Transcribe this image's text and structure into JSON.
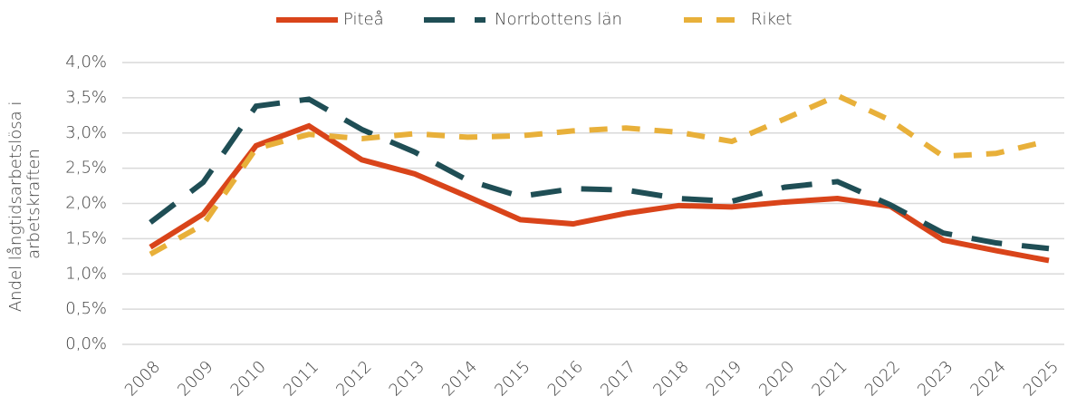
{
  "chart_data": {
    "type": "line",
    "ylabel": [
      "Andel långtidsarbetslösa i",
      "arbetskraften"
    ],
    "categories": [
      "2008",
      "2009",
      "2010",
      "2011",
      "2012",
      "2013",
      "2014",
      "2015",
      "2016",
      "2017",
      "2018",
      "2019",
      "2020",
      "2021",
      "2022",
      "2023",
      "2024",
      "2025"
    ],
    "series": [
      {
        "name": "Piteå",
        "color": "#d9441a",
        "line_style": "solid",
        "values": [
          1.38,
          1.85,
          2.82,
          3.1,
          2.62,
          2.42,
          2.1,
          1.77,
          1.71,
          1.86,
          1.97,
          1.95,
          2.02,
          2.07,
          1.96,
          1.48,
          1.33,
          1.19
        ]
      },
      {
        "name": "Norrbottens län",
        "color": "#1f4e55",
        "line_style": "long-dash",
        "values": [
          1.73,
          2.3,
          3.38,
          3.48,
          3.05,
          2.73,
          2.33,
          2.1,
          2.21,
          2.19,
          2.07,
          2.03,
          2.23,
          2.31,
          1.98,
          1.58,
          1.44,
          1.36
        ]
      },
      {
        "name": "Riket",
        "color": "#e8b03a",
        "line_style": "dash",
        "values": [
          1.28,
          1.7,
          2.78,
          2.98,
          2.92,
          2.99,
          2.94,
          2.96,
          3.03,
          3.07,
          3.01,
          2.88,
          3.2,
          3.53,
          3.18,
          2.67,
          2.71,
          2.89
        ]
      }
    ],
    "ylim": [
      0,
      4
    ],
    "yticks": [
      {
        "value": 0,
        "label": "0,0%"
      },
      {
        "value": 0.5,
        "label": "0,5%"
      },
      {
        "value": 1,
        "label": "1,0%"
      },
      {
        "value": 1.5,
        "label": "1,5%"
      },
      {
        "value": 2,
        "label": "2,0%"
      },
      {
        "value": 2.5,
        "label": "2,5%"
      },
      {
        "value": 3,
        "label": "3,0%"
      },
      {
        "value": 3.5,
        "label": "3,5%"
      },
      {
        "value": 4,
        "label": "4,0%"
      }
    ],
    "grid": true,
    "legend": "top"
  }
}
